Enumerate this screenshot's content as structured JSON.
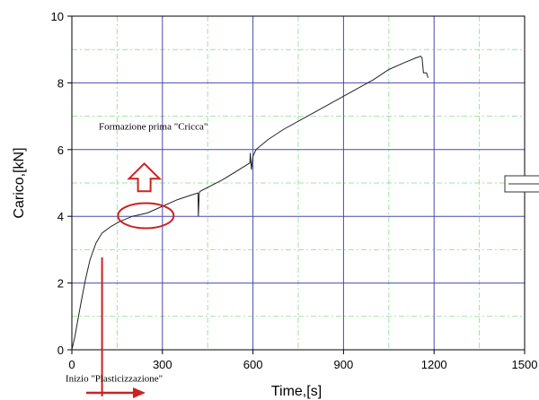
{
  "chart_data": {
    "type": "line",
    "xlabel": "Time,[s]",
    "ylabel": "Carico,[kN]",
    "xlim": [
      0,
      1500
    ],
    "ylim": [
      0,
      10
    ],
    "x_ticks": [
      0,
      300,
      600,
      900,
      1200,
      1500
    ],
    "y_ticks": [
      0,
      2,
      4,
      6,
      8,
      10
    ],
    "grid": true,
    "series": [
      {
        "color": "#222222",
        "x": [
          0,
          10,
          20,
          30,
          45,
          60,
          80,
          100,
          130,
          160,
          200,
          250,
          300,
          350,
          400,
          418,
          419,
          422,
          425,
          500,
          590,
          591,
          595,
          600,
          610,
          650,
          700,
          800,
          900,
          1000,
          1050,
          1100,
          1140,
          1150,
          1155,
          1160,
          1165,
          1170,
          1175,
          1180
        ],
        "y": [
          0.0,
          0.4,
          0.9,
          1.4,
          2.1,
          2.7,
          3.2,
          3.5,
          3.7,
          3.85,
          4.0,
          4.1,
          4.3,
          4.5,
          4.65,
          4.7,
          4.0,
          4.7,
          4.75,
          5.1,
          5.6,
          5.9,
          5.4,
          5.8,
          6.0,
          6.3,
          6.6,
          7.1,
          7.6,
          8.1,
          8.4,
          8.6,
          8.75,
          8.78,
          8.8,
          8.75,
          8.3,
          8.3,
          8.3,
          8.15
        ]
      }
    ],
    "annotations": [
      {
        "text": "Formazione prima \"Cricca\"",
        "x": 270,
        "y": 6.6
      },
      {
        "text": "Inizio \"Plasticizzazione\"",
        "x": 140,
        "y": -0.95
      }
    ]
  },
  "colors": {
    "grid_major": "#4a4ab0",
    "grid_minor": "#9fe39f",
    "annotation": "#cc2222"
  }
}
